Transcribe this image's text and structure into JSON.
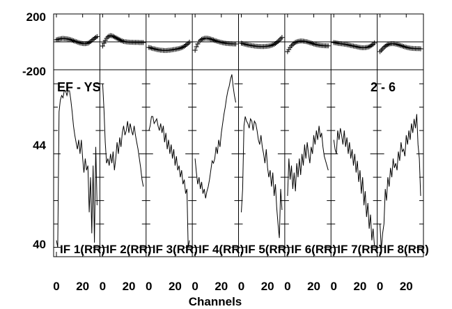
{
  "chart_data": {
    "type": "line",
    "baseline": "EF - YS",
    "scan": "2 - 6",
    "xlabel": "Channels",
    "xtick_labels": [
      "0",
      "20"
    ],
    "phase_panel": {
      "ylim": [
        -200,
        200
      ],
      "ytick_labels": [
        "200",
        "-200"
      ],
      "marker": "+"
    },
    "amp_panel": {
      "ylim": [
        39.6,
        47.6
      ],
      "ytick_labels": [
        "44",
        "40"
      ]
    },
    "channels_per_if": 32,
    "ifs": [
      {
        "label": "IF 1(RR)",
        "phase": [
          15,
          18,
          20,
          22,
          24,
          25,
          24,
          23,
          22,
          20,
          18,
          15,
          12,
          8,
          5,
          2,
          -2,
          -5,
          -8,
          -10,
          -12,
          -13,
          -13,
          -12,
          -10,
          -5,
          2,
          10,
          18,
          25,
          32,
          38
        ],
        "amp": [
          40.3,
          40.0,
          45.8,
          46.3,
          46.5,
          46.4,
          46.7,
          46.7,
          46.5,
          46.7,
          46.7,
          46.3,
          45.8,
          45.2,
          44.8,
          44.5,
          44.2,
          44.6,
          44.0,
          44.6,
          43.8,
          43.2,
          43.8,
          43.3,
          43.5,
          41.5,
          43.0,
          40.6,
          43.5,
          40.2,
          44.3,
          41.8
        ]
      },
      {
        "label": "IF 2(RR)",
        "phase": [
          -30,
          -10,
          10,
          25,
          35,
          42,
          45,
          44,
          40,
          35,
          30,
          25,
          20,
          15,
          10,
          6,
          3,
          1,
          0,
          -1,
          -2,
          -3,
          -3,
          -3,
          -4,
          -4,
          -4,
          -4,
          -5,
          -5,
          -5,
          -5
        ],
        "amp": [
          47.0,
          45.9,
          44.5,
          43.6,
          43.8,
          43.5,
          44.0,
          43.6,
          44.1,
          43.3,
          43.8,
          44.5,
          44.0,
          44.7,
          44.3,
          44.9,
          45.2,
          44.8,
          45.0,
          45.4,
          44.9,
          45.3,
          45.0,
          44.8,
          45.2,
          44.8,
          44.5,
          44.2,
          43.8,
          43.4,
          42.9,
          42.6
        ]
      },
      {
        "label": "IF 3(RR)",
        "phase": [
          -40,
          -42,
          -45,
          -48,
          -50,
          -52,
          -55,
          -56,
          -58,
          -60,
          -60,
          -61,
          -62,
          -62,
          -61,
          -60,
          -60,
          -58,
          -56,
          -55,
          -54,
          -52,
          -50,
          -48,
          -45,
          -42,
          -38,
          -32,
          -25,
          -18,
          -10,
          -2
        ],
        "amp": [
          45.0,
          45.2,
          45.6,
          45.6,
          45.3,
          45.4,
          45.5,
          45.2,
          45.0,
          45.3,
          44.9,
          45.2,
          44.5,
          44.9,
          44.2,
          44.6,
          44.0,
          44.4,
          43.8,
          44.2,
          43.5,
          43.9,
          43.3,
          43.5,
          43.0,
          43.3,
          42.7,
          42.9,
          42.3,
          42.5,
          40.0,
          40.3
        ]
      },
      {
        "label": "IF 4(RR)",
        "phase": [
          -60,
          -35,
          -15,
          0,
          10,
          18,
          22,
          25,
          26,
          26,
          25,
          23,
          20,
          17,
          14,
          10,
          7,
          4,
          1,
          -2,
          -4,
          -6,
          -8,
          -10,
          -11,
          -12,
          -13,
          -14,
          -14,
          -15,
          -15,
          -15
        ],
        "amp": [
          43.8,
          43.2,
          42.7,
          43.0,
          42.5,
          42.8,
          42.3,
          42.5,
          42.1,
          42.4,
          42.6,
          42.9,
          43.3,
          43.7,
          43.6,
          43.8,
          44.3,
          44.0,
          44.6,
          44.3,
          44.9,
          45.3,
          45.7,
          46.0,
          46.4,
          46.7,
          46.9,
          47.2,
          47.4,
          46.9,
          46.5,
          46.2
        ]
      },
      {
        "label": "IF 5(RR)",
        "phase": [
          -10,
          -12,
          -15,
          -17,
          -20,
          -22,
          -24,
          -25,
          -27,
          -28,
          -30,
          -31,
          -32,
          -33,
          -33,
          -34,
          -34,
          -34,
          -33,
          -32,
          -31,
          -30,
          -28,
          -25,
          -22,
          -18,
          -12,
          -5,
          3,
          12,
          22,
          32
        ],
        "amp": [
          41.5,
          42.5,
          45.2,
          45.6,
          45.4,
          45.3,
          45.1,
          45.5,
          45.4,
          45.0,
          45.4,
          45.3,
          45.0,
          44.6,
          44.4,
          44.8,
          44.3,
          44.0,
          43.6,
          44.2,
          43.4,
          43.0,
          43.3,
          42.6,
          43.2,
          42.2,
          42.7,
          41.7,
          41.0,
          40.4,
          42.5,
          41.6
        ]
      },
      {
        "label": "IF 6(RR)",
        "phase": [
          -70,
          -55,
          -40,
          -28,
          -18,
          -10,
          -4,
          0,
          3,
          5,
          6,
          6,
          5,
          4,
          2,
          0,
          -3,
          -6,
          -9,
          -12,
          -15,
          -18,
          -20,
          -22,
          -24,
          -25,
          -26,
          -27,
          -28,
          -28,
          -29,
          -29
        ],
        "amp": [
          42.2,
          43.8,
          42.9,
          43.5,
          42.5,
          43.2,
          42.4,
          43.6,
          43.0,
          43.8,
          43.1,
          44.0,
          43.5,
          44.4,
          43.8,
          44.5,
          44.0,
          43.6,
          44.3,
          44.0,
          44.8,
          44.4,
          45.0,
          44.6,
          45.2,
          44.7,
          44.9,
          44.3,
          43.9,
          43.7,
          43.5,
          43.3
        ]
      },
      {
        "label": "IF 7(RR)",
        "phase": [
          -5,
          -6,
          -8,
          -10,
          -12,
          -13,
          -14,
          -15,
          -17,
          -18,
          -20,
          -22,
          -24,
          -26,
          -28,
          -30,
          -32,
          -34,
          -36,
          -38,
          -40,
          -41,
          -42,
          -42,
          -41,
          -40,
          -38,
          -35,
          -30,
          -24,
          -17,
          -8
        ],
        "amp": [
          44.6,
          44.2,
          44.0,
          45.0,
          44.6,
          45.1,
          44.8,
          44.4,
          45.0,
          44.3,
          44.7,
          44.0,
          44.5,
          43.8,
          44.2,
          43.5,
          44.0,
          43.2,
          43.7,
          42.8,
          43.3,
          42.3,
          43.0,
          41.8,
          42.4,
          41.3,
          41.9,
          40.8,
          41.4,
          40.3,
          40.8,
          40.1
        ]
      },
      {
        "label": "IF 8(RR)",
        "phase": [
          -70,
          -60,
          -50,
          -40,
          -32,
          -25,
          -20,
          -16,
          -14,
          -13,
          -13,
          -14,
          -16,
          -18,
          -21,
          -24,
          -27,
          -30,
          -33,
          -36,
          -39,
          -41,
          -43,
          -45,
          -46,
          -47,
          -48,
          -48,
          -49,
          -49,
          -49,
          -50
        ],
        "amp": [
          41.0,
          39.9,
          40.6,
          41.0,
          42.5,
          42.0,
          43.0,
          42.6,
          43.4,
          43.0,
          43.8,
          43.4,
          43.6,
          43.3,
          44.1,
          43.7,
          44.5,
          44.1,
          44.2,
          43.9,
          44.8,
          44.4,
          45.0,
          44.6,
          45.3,
          44.9,
          45.5,
          45.1,
          45.7,
          44.4,
          43.8,
          42.2
        ]
      }
    ]
  }
}
